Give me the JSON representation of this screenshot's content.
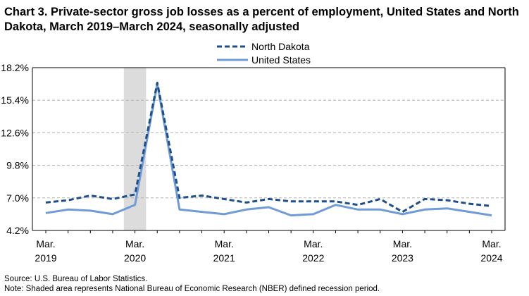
{
  "title": "Chart 3. Private-sector gross job losses as a percent of employment, United States and North Dakota, March 2019–March 2024, seasonally adjusted",
  "source": "Source: U.S. Bureau of Labor Statistics.",
  "note": "Note: Shaded area represents National Bureau of Economic Research (NBER) defined recession period.",
  "colors": {
    "north_dakota": "#1f4e8c",
    "united_states": "#6f9bd6",
    "grid": "#b0b0b0",
    "recession": "#dcdcdc",
    "axis": "#000000"
  },
  "chart_data": {
    "type": "line",
    "title": "Chart 3. Private-sector gross job losses as a percent of employment, United States and North Dakota, March 2019–March 2024, seasonally adjusted",
    "xlabel": "",
    "ylabel": "",
    "ylim": [
      4.2,
      18.2
    ],
    "yticks": [
      "4.2%",
      "7.0%",
      "9.8%",
      "12.6%",
      "15.4%",
      "18.2%"
    ],
    "ytick_values": [
      4.2,
      7.0,
      9.8,
      12.6,
      15.4,
      18.2
    ],
    "x": [
      "2019Q1",
      "2019Q2",
      "2019Q3",
      "2019Q4",
      "2020Q1",
      "2020Q2",
      "2020Q3",
      "2020Q4",
      "2021Q1",
      "2021Q2",
      "2021Q3",
      "2021Q4",
      "2022Q1",
      "2022Q2",
      "2022Q3",
      "2022Q4",
      "2023Q1",
      "2023Q2",
      "2023Q3",
      "2023Q4",
      "2024Q1"
    ],
    "xtick_labels": [
      {
        "index": 0,
        "month": "Mar.",
        "year": "2019"
      },
      {
        "index": 4,
        "month": "Mar.",
        "year": "2020"
      },
      {
        "index": 8,
        "month": "Mar.",
        "year": "2021"
      },
      {
        "index": 12,
        "month": "Mar.",
        "year": "2022"
      },
      {
        "index": 16,
        "month": "Mar.",
        "year": "2023"
      },
      {
        "index": 20,
        "month": "Mar.",
        "year": "2024"
      }
    ],
    "recession": {
      "from_index": 3.5,
      "to_index": 4.5
    },
    "legend": {
      "position": "top-center"
    },
    "grid": true,
    "series": [
      {
        "name": "North Dakota",
        "style": "dashed",
        "values": [
          6.6,
          6.8,
          7.2,
          6.9,
          7.3,
          16.9,
          7.0,
          7.2,
          6.9,
          6.6,
          6.9,
          6.7,
          6.7,
          6.7,
          6.4,
          6.9,
          5.8,
          6.9,
          6.8,
          6.5,
          6.3
        ]
      },
      {
        "name": "United States",
        "style": "solid",
        "values": [
          5.7,
          6.0,
          5.9,
          5.6,
          6.4,
          16.8,
          6.0,
          5.8,
          5.6,
          6.0,
          6.2,
          5.5,
          5.6,
          6.4,
          6.0,
          6.0,
          5.6,
          6.0,
          6.1,
          5.8,
          5.5
        ]
      }
    ]
  }
}
